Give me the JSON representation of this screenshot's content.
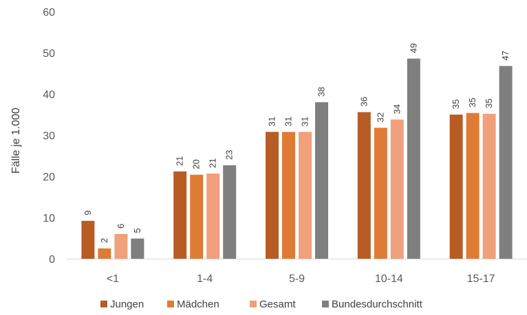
{
  "chart_data": {
    "type": "bar",
    "title": "",
    "xlabel": "",
    "ylabel": "Fälle je 1.000",
    "ylim": [
      0,
      60
    ],
    "yticks": [
      0,
      10,
      20,
      30,
      40,
      50,
      60
    ],
    "grid": false,
    "legend_position": "bottom",
    "categories": [
      "<1",
      "1-4",
      "5-9",
      "10-14",
      "15-17"
    ],
    "series": [
      {
        "name": "Jungen",
        "color": "#b85c25",
        "values": [
          9,
          21,
          31,
          36,
          35
        ]
      },
      {
        "name": "Mädchen",
        "color": "#e07b35",
        "values": [
          2,
          20,
          31,
          32,
          35
        ]
      },
      {
        "name": "Gesamt",
        "color": "#f0a07a",
        "values": [
          6,
          21,
          31,
          34,
          35
        ]
      },
      {
        "name": "Bundesdurchschnitt",
        "color": "#7f7f7f",
        "values": [
          5,
          23,
          38,
          49,
          47
        ]
      }
    ],
    "bar_heights": [
      [
        9.2,
        21.2,
        30.8,
        35.6,
        35.0
      ],
      [
        2.5,
        20.4,
        30.8,
        31.8,
        35.4
      ],
      [
        6.0,
        20.7,
        30.8,
        33.8,
        35.2
      ],
      [
        4.9,
        22.7,
        38.0,
        48.6,
        46.8
      ]
    ],
    "axis_line_color": "#d9d9d9"
  }
}
